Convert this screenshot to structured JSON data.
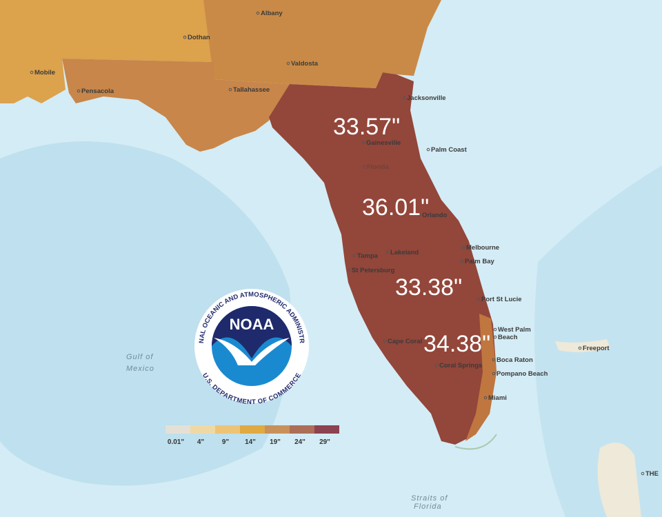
{
  "map": {
    "rainfall_labels": [
      "33.57\"",
      "36.01\"",
      "33.38\"",
      "34.38\""
    ],
    "cities": [
      "Albany",
      "Dothan",
      "Valdosta",
      "Mobile",
      "Pensacola",
      "Tallahassee",
      "Jacksonville",
      "Palm Coast",
      "Gainesville",
      "Orlando",
      "Melbourne",
      "Palm Bay",
      "Lakeland",
      "Tampa",
      "St Petersburg",
      "Port St Lucie",
      "West Palm",
      "Beach",
      "Cape Coral",
      "Coral Springs",
      "Boca Raton",
      "Pompano Beach",
      "Miami",
      "Freeport",
      "Florida",
      "THE"
    ],
    "water_labels": [
      "Gulf of",
      "Mexico",
      "Straits of",
      "Florida"
    ],
    "logo": {
      "acronym": "NOAA",
      "top_text": "NATIONAL OCEANIC AND ATMOSPHERIC ADMINISTRATION",
      "bottom_text": "U.S. DEPARTMENT OF COMMERCE"
    },
    "legend": {
      "colors": [
        "#e4e0d6",
        "#eed9a6",
        "#edc476",
        "#e0a942",
        "#c8915a",
        "#ad6e58",
        "#8c4250"
      ],
      "labels": [
        "0.01\"",
        "4\"",
        "9\"",
        "14\"",
        "19\"",
        "24\"",
        "29\""
      ]
    }
  }
}
